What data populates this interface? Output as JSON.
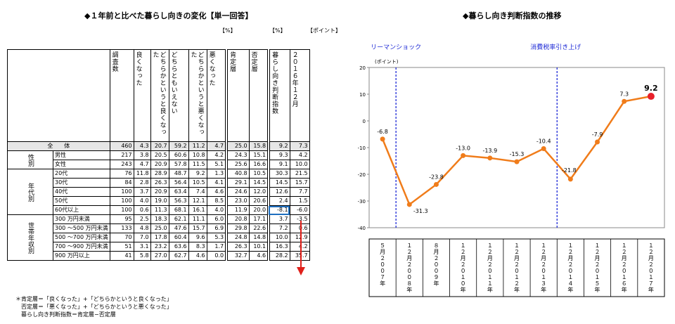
{
  "left": {
    "title": "◆１年前と比べた暮らし向きの変化【単一回答】",
    "unit_pct1": "【%】",
    "unit_pct2": "【%】",
    "unit_point": "【ポイント】",
    "headers": [
      "調査数",
      "良くなった",
      "どちらかというと良くなった",
      "どちらともいえない",
      "どちらかというと悪くなった",
      "悪くなった",
      "肯定層",
      "否定層",
      "暮らし向き判断指数",
      "２０１６年１２月"
    ],
    "total_label": "全　　体",
    "groups": [
      {
        "label": "性別",
        "rows": [
          0,
          1
        ]
      },
      {
        "label": "年代別",
        "rows": [
          2,
          6
        ]
      },
      {
        "label": "世帯年収別",
        "rows": [
          7,
          11
        ]
      }
    ],
    "rows": [
      {
        "label": "全　　体",
        "v": [
          "460",
          "4.3",
          "20.7",
          "59.2",
          "11.2",
          "4.7",
          "25.0",
          "15.8",
          "9.2",
          "7.3"
        ]
      },
      {
        "label": "男性",
        "v": [
          "217",
          "3.8",
          "20.5",
          "60.6",
          "10.8",
          "4.2",
          "24.3",
          "15.1",
          "9.3",
          "4.2"
        ]
      },
      {
        "label": "女性",
        "v": [
          "243",
          "4.7",
          "20.9",
          "57.8",
          "11.5",
          "5.1",
          "25.6",
          "16.6",
          "9.1",
          "10.0"
        ]
      },
      {
        "label": "20代",
        "v": [
          "76",
          "11.8",
          "28.9",
          "48.7",
          "9.2",
          "1.3",
          "40.8",
          "10.5",
          "30.3",
          "21.5"
        ]
      },
      {
        "label": "30代",
        "v": [
          "84",
          "2.8",
          "26.3",
          "56.4",
          "10.5",
          "4.1",
          "29.1",
          "14.5",
          "14.5",
          "15.7"
        ]
      },
      {
        "label": "40代",
        "v": [
          "100",
          "3.7",
          "20.9",
          "63.4",
          "7.4",
          "4.6",
          "24.6",
          "12.0",
          "12.6",
          "7.7"
        ]
      },
      {
        "label": "50代",
        "v": [
          "100",
          "4.0",
          "19.0",
          "56.3",
          "12.1",
          "8.5",
          "23.0",
          "20.6",
          "2.4",
          "1.5"
        ]
      },
      {
        "label": "60代以上",
        "v": [
          "100",
          "0.6",
          "11.3",
          "68.1",
          "16.1",
          "4.0",
          "11.9",
          "20.0",
          "-8.1",
          "-6.0"
        ]
      },
      {
        "label": "300 万円未満",
        "v": [
          "95",
          "2.5",
          "18.3",
          "62.1",
          "11.1",
          "6.0",
          "20.8",
          "17.1",
          "3.7",
          "-3.5"
        ]
      },
      {
        "label": "300 ～500 万円未満",
        "v": [
          "133",
          "4.8",
          "25.0",
          "47.6",
          "15.7",
          "6.9",
          "29.8",
          "22.6",
          "7.2",
          "0.6"
        ]
      },
      {
        "label": "500 ～700 万円未満",
        "v": [
          "70",
          "7.0",
          "17.8",
          "60.4",
          "9.6",
          "5.3",
          "24.8",
          "14.8",
          "10.0",
          "12.9"
        ]
      },
      {
        "label": "700 ～900 万円未満",
        "v": [
          "51",
          "3.1",
          "23.2",
          "63.6",
          "8.3",
          "1.7",
          "26.3",
          "10.1",
          "16.3",
          "4.2"
        ]
      },
      {
        "label": "900 万円以上",
        "v": [
          "41",
          "5.8",
          "27.0",
          "62.7",
          "4.6",
          "0.0",
          "32.7",
          "4.6",
          "28.2",
          "35.7"
        ]
      }
    ],
    "notes": [
      "＊肯定層＝「良くなった」+「どちらかというと良くなった」",
      "否定層＝「悪くなった」+「どちらかというと悪くなった」",
      "暮らし向き判断指数＝肯定層−否定層"
    ]
  },
  "chart_data": {
    "type": "line",
    "title": "◆暮らし向き判断指数の推移",
    "ylabel": "(ポイント)",
    "ylim": [
      -40,
      20
    ],
    "yticks": [
      20,
      10,
      0,
      -10,
      -20,
      -30,
      -40
    ],
    "categories": [
      "5月2007年",
      "12月2008年",
      "8月2009年",
      "12月2010年",
      "12月2011年",
      "12月2012年",
      "12月2013年",
      "12月2014年",
      "12月2015年",
      "12月2016年",
      "12月2017年"
    ],
    "category_labels": [
      "５月２００７年",
      "１２月２００８年",
      "８月２００９年",
      "１２月２０１０年",
      "１２月２０１１年",
      "１２月２０１２年",
      "１２月２０１３年",
      "１２月２０１４年",
      "１２月２０１５年",
      "１２月２０１６年",
      "１２月２０１７年"
    ],
    "values": [
      -6.8,
      -31.3,
      -23.8,
      -13.0,
      -13.9,
      -15.3,
      -10.4,
      -21.8,
      -7.9,
      7.3,
      9.2
    ],
    "value_labels": [
      "-6.8",
      "-31.3",
      "-23.8",
      "-13.0",
      "-13.9",
      "-15.3",
      "-10.4",
      "-21.8",
      "-7.9",
      "7.3",
      "9.2"
    ],
    "annotations": [
      {
        "text": "リーマンショック",
        "between": [
          0,
          1
        ]
      },
      {
        "text": "消費税率引き上げ",
        "between": [
          6,
          7
        ]
      }
    ],
    "colors": {
      "line": "#f07c1a",
      "last_point": "#e8202a",
      "annotation": "#1f2bd6"
    },
    "grid": false
  }
}
